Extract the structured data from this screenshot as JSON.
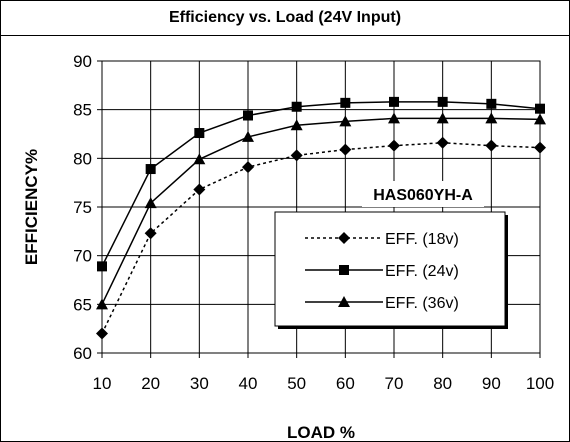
{
  "chart_data": {
    "type": "line",
    "title": "Efficiency vs. Load (24V Input)",
    "xlabel": "LOAD %",
    "ylabel": "EFFICIENCY%",
    "x": [
      10,
      20,
      30,
      40,
      50,
      60,
      70,
      80,
      90,
      100
    ],
    "xlim": [
      10,
      100
    ],
    "ylim": [
      60,
      90
    ],
    "xticks": [
      10,
      20,
      30,
      40,
      50,
      60,
      70,
      80,
      90,
      100
    ],
    "yticks": [
      60,
      65,
      70,
      75,
      80,
      85,
      90
    ],
    "grid": true,
    "annotation": "HAS060YH-A",
    "legend_position": "right",
    "series": [
      {
        "name": "EFF. (18v)",
        "marker": "diamond",
        "line_style": "dotted",
        "color": "#000000",
        "values": [
          62.0,
          72.3,
          76.8,
          79.1,
          80.3,
          80.9,
          81.3,
          81.6,
          81.3,
          81.1
        ]
      },
      {
        "name": "EFF. (24v)",
        "marker": "square",
        "line_style": "solid",
        "color": "#000000",
        "values": [
          68.9,
          78.9,
          82.6,
          84.4,
          85.3,
          85.7,
          85.8,
          85.8,
          85.6,
          85.1
        ]
      },
      {
        "name": "EFF. (36v)",
        "marker": "triangle",
        "line_style": "solid",
        "color": "#000000",
        "values": [
          65.0,
          75.4,
          79.9,
          82.2,
          83.4,
          83.8,
          84.1,
          84.1,
          84.1,
          84.0
        ]
      }
    ]
  }
}
